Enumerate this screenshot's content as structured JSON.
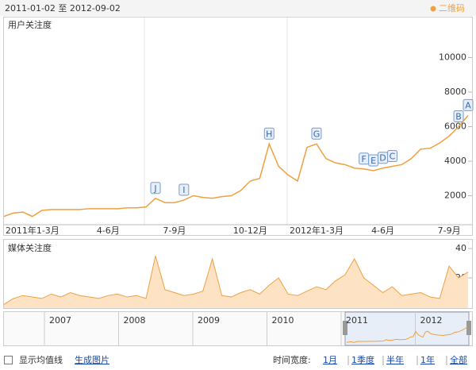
{
  "header": {
    "date_range": "2011-01-02 至 2012-09-02",
    "qr_code": "二维码"
  },
  "chart_data": [
    {
      "type": "line",
      "title": "用户关注度",
      "color": "#f0a040",
      "categories": [
        null,
        null,
        null,
        "2011年1-3月",
        null,
        null,
        null,
        null,
        null,
        null,
        null,
        "4-6月",
        null,
        null,
        null,
        null,
        null,
        null,
        "7-9月",
        null,
        null,
        null,
        null,
        null,
        null,
        null,
        "10-12月",
        null,
        null,
        null,
        null,
        null,
        null,
        "2012年1-3月",
        null,
        null,
        null,
        null,
        null,
        null,
        "4-6月",
        null,
        null,
        null,
        null,
        null,
        null,
        "7-9月",
        null,
        null
      ],
      "values": [
        800,
        1000,
        1050,
        800,
        1150,
        1200,
        1200,
        1200,
        1200,
        1250,
        1250,
        1250,
        1250,
        1300,
        1300,
        1350,
        1850,
        1600,
        1600,
        1750,
        2000,
        1900,
        1850,
        1950,
        2000,
        2300,
        2850,
        3000,
        5000,
        3700,
        3200,
        2850,
        4800,
        5000,
        4150,
        3900,
        3800,
        3600,
        3550,
        3450,
        3600,
        3700,
        3800,
        4150,
        4700,
        4750,
        5050,
        5450,
        6000,
        6650
      ],
      "markers": [
        null,
        null,
        null,
        null,
        null,
        null,
        null,
        null,
        null,
        null,
        null,
        null,
        null,
        null,
        null,
        null,
        "J",
        null,
        null,
        "I",
        null,
        null,
        null,
        null,
        null,
        null,
        null,
        null,
        "H",
        null,
        null,
        null,
        null,
        "G",
        null,
        null,
        null,
        null,
        "F",
        "E",
        "D",
        "C",
        null,
        null,
        null,
        null,
        null,
        null,
        "B",
        "A"
      ],
      "ylim": [
        0,
        12000
      ],
      "yticks": [
        2000,
        4000,
        6000,
        8000,
        10000
      ]
    },
    {
      "type": "area",
      "title": "媒体关注度",
      "color": "#f0a040",
      "values": [
        2,
        6,
        8,
        7,
        6,
        9,
        7,
        10,
        8,
        7,
        6,
        8,
        9,
        7,
        8,
        6,
        35,
        12,
        10,
        8,
        9,
        11,
        33,
        8,
        7,
        10,
        12,
        9,
        15,
        20,
        9,
        8,
        11,
        14,
        12,
        18,
        22,
        33,
        20,
        15,
        10,
        14,
        8,
        9,
        10,
        7,
        6,
        28,
        20,
        24
      ],
      "ylim": [
        0,
        40
      ],
      "yticks": [
        20,
        40
      ]
    }
  ],
  "navigator": {
    "years": [
      "2007",
      "2008",
      "2009",
      "2010",
      "2011",
      "2012"
    ]
  },
  "footer": {
    "show_average": "显示均值线",
    "make_image": "生成图片",
    "time_width_label": "时间宽度:",
    "ranges": [
      "1月",
      "1季度",
      "半年",
      "1年",
      "全部"
    ]
  }
}
